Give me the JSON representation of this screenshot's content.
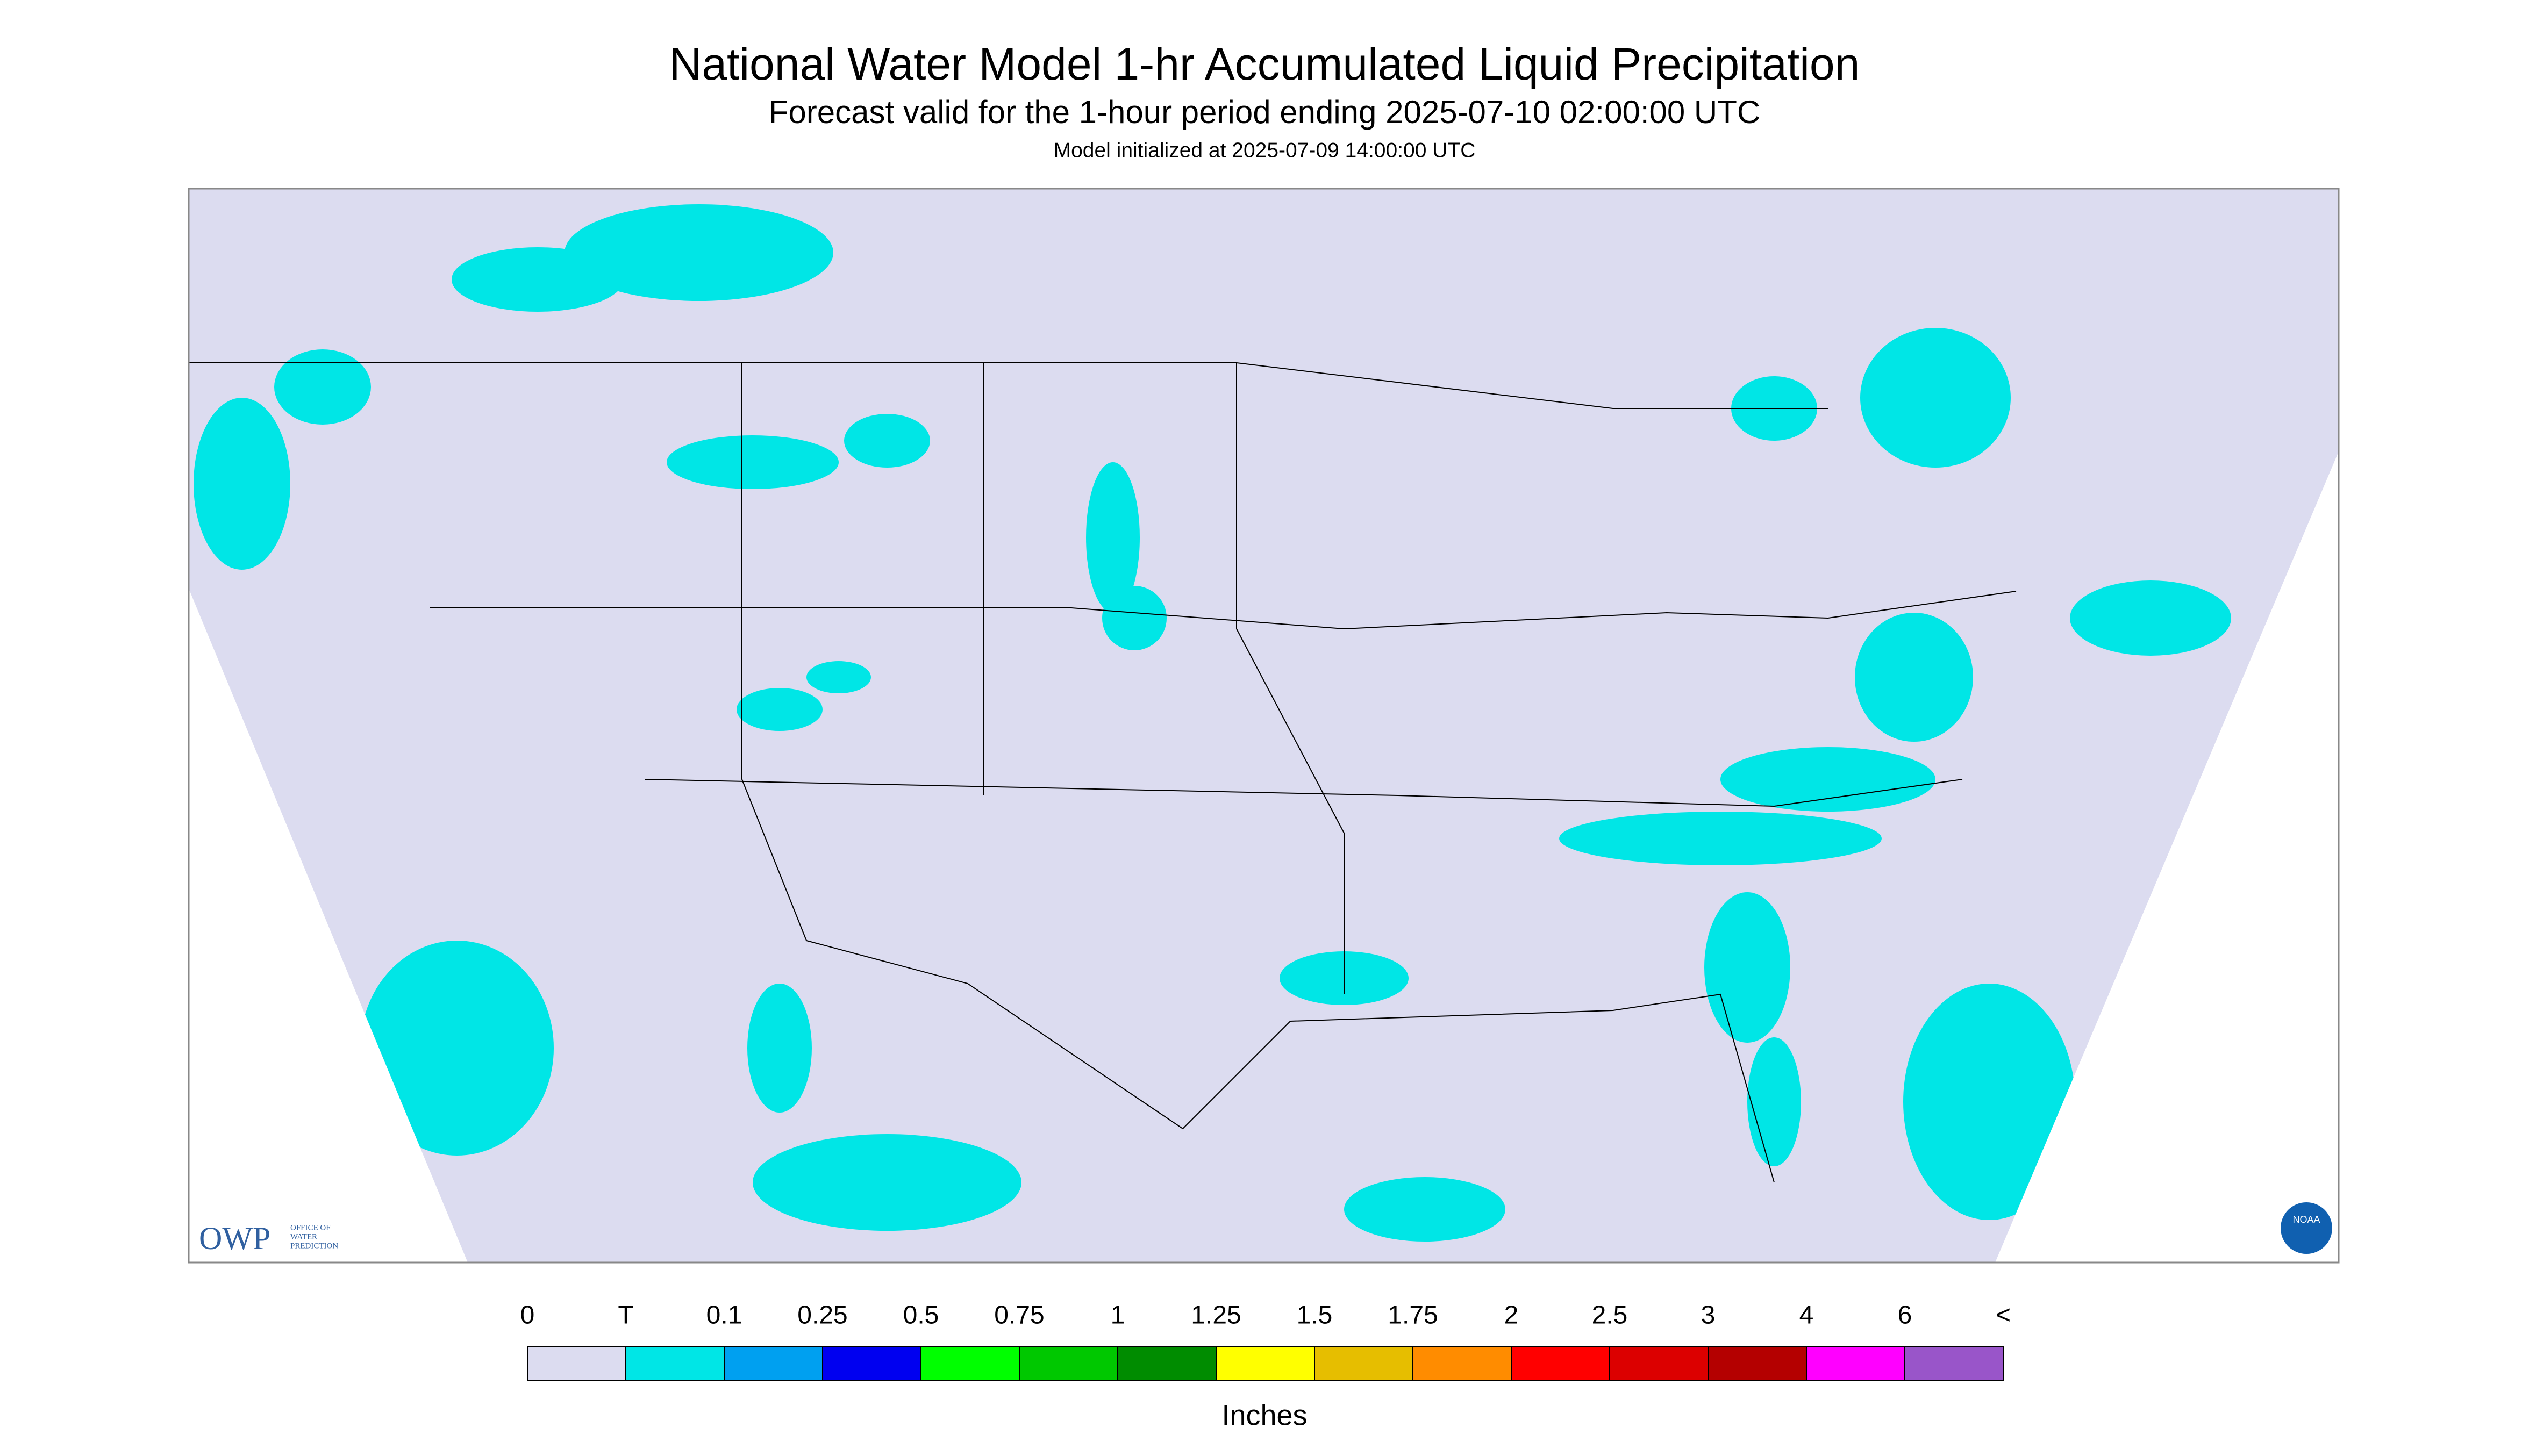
{
  "header": {
    "title": "National Water Model 1-hr Accumulated Liquid Precipitation",
    "subtitle": "Forecast valid for the 1-hour period ending 2025-07-10 02:00:00 UTC",
    "init": "Model initialized at 2025-07-09 14:00:00 UTC"
  },
  "logos": {
    "owp": "OWP",
    "owp_text": [
      "OFFICE OF",
      "WATER",
      "PREDICTION"
    ],
    "noaa": "NOAA"
  },
  "legend": {
    "labels": [
      "0",
      "T",
      "0.1",
      "0.25",
      "0.5",
      "0.75",
      "1",
      "1.25",
      "1.5",
      "1.75",
      "2",
      "2.5",
      "3",
      "4",
      "6",
      "<"
    ],
    "colors": [
      "#dcdcf0",
      "#00e6e6",
      "#00a0f0",
      "#0000f0",
      "#00ff00",
      "#00c800",
      "#008c00",
      "#ffff00",
      "#e6be00",
      "#ff8c00",
      "#ff0000",
      "#dc0000",
      "#b40000",
      "#ff00ff",
      "#9955c9"
    ],
    "unit": "Inches"
  }
}
